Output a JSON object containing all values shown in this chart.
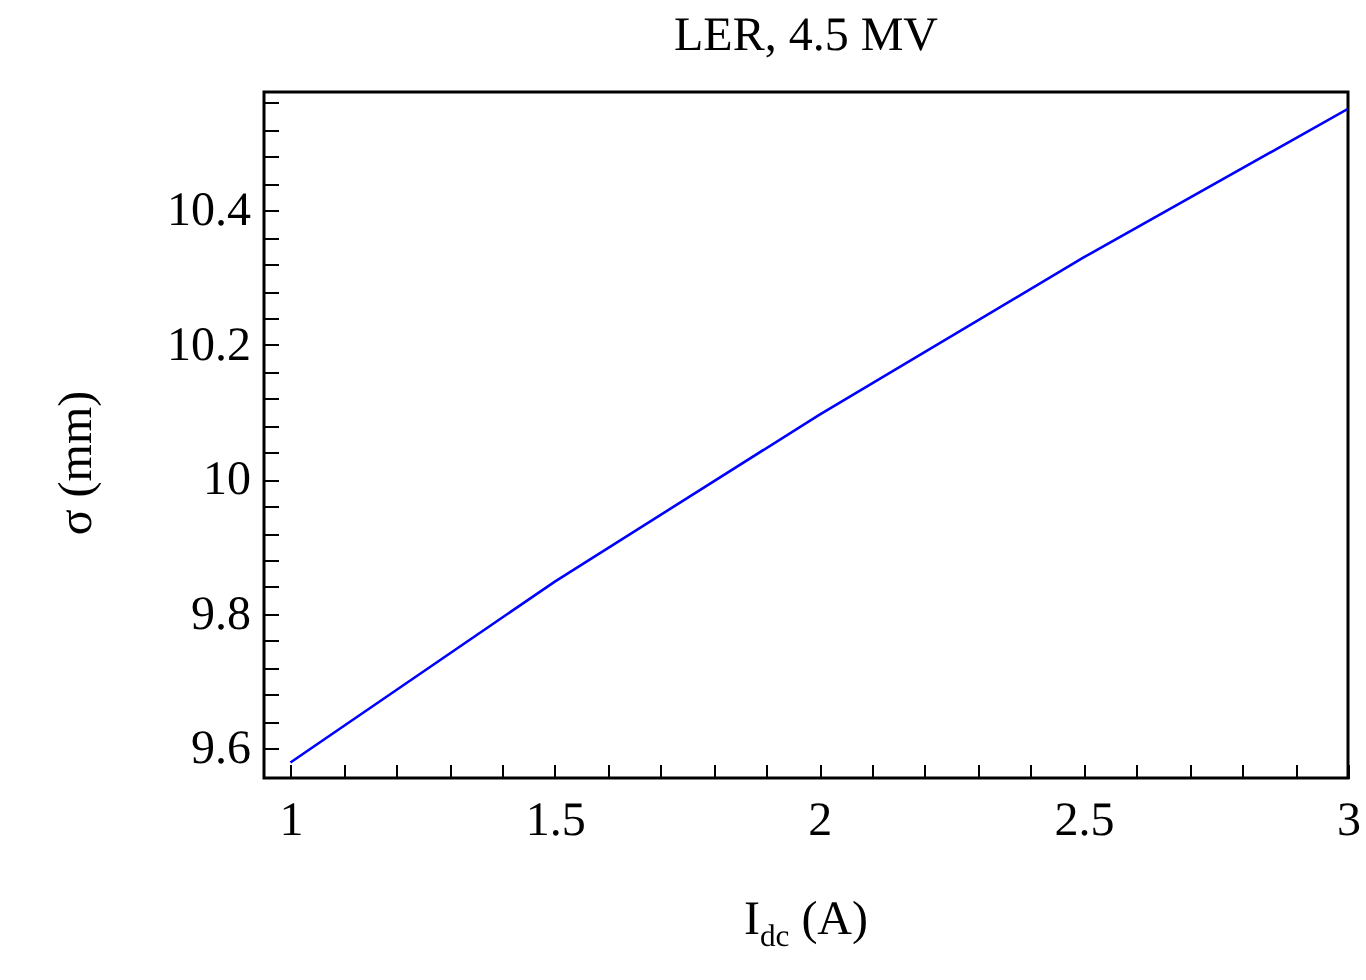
{
  "chart_data": {
    "type": "line",
    "title": "LER, 4.5 MV",
    "xlabel": "I$_{dc}$ (A)",
    "ylabel": "σ (mm)",
    "x": [
      1,
      1.5,
      2,
      2.5,
      3
    ],
    "series": [
      {
        "color": "#0000ff",
        "values": [
          9.579,
          9.848,
          10.096,
          10.33,
          10.551
        ]
      }
    ],
    "xlim": [
      0.95,
      3.0
    ],
    "xticks": [
      1,
      {
        "value": 1.1,
        "label": null
      },
      {
        "value": 1.2,
        "label": null
      },
      {
        "value": 1.3,
        "label": null
      },
      {
        "value": 1.4,
        "label": null
      },
      1.5,
      {
        "value": 1.6,
        "label": null
      },
      {
        "value": 1.7,
        "label": null
      },
      {
        "value": 1.8,
        "label": null
      },
      {
        "value": 1.9,
        "label": null
      },
      2,
      {
        "value": 2.1,
        "label": null
      },
      {
        "value": 2.2,
        "label": null
      },
      {
        "value": 2.3,
        "label": null
      },
      {
        "value": 2.4,
        "label": null
      },
      2.5,
      {
        "value": 2.6,
        "label": null
      },
      {
        "value": 2.7,
        "label": null
      },
      {
        "value": 2.8,
        "label": null
      },
      {
        "value": 2.9,
        "label": null
      },
      3
    ],
    "ylim": [
      9.556,
      10.576
    ],
    "yticks": [
      9.6,
      {
        "value": 9.64,
        "label": null
      },
      {
        "value": 9.68,
        "label": null
      },
      {
        "value": 9.72,
        "label": null
      },
      {
        "value": 9.76,
        "label": null
      },
      9.8,
      {
        "value": 9.84,
        "label": null
      },
      {
        "value": 9.88,
        "label": null
      },
      {
        "value": 9.92,
        "label": null
      },
      {
        "value": 9.96,
        "label": null
      },
      10,
      {
        "value": 10.04,
        "label": null
      },
      {
        "value": 10.08,
        "label": null
      },
      {
        "value": 10.12,
        "label": null
      },
      {
        "value": 10.16,
        "label": null
      },
      10.2,
      {
        "value": 10.24,
        "label": null
      },
      {
        "value": 10.28,
        "label": null
      },
      {
        "value": 10.32,
        "label": null
      },
      {
        "value": 10.36,
        "label": null
      },
      10.4,
      {
        "value": 10.44,
        "label": null
      },
      {
        "value": 10.48,
        "label": null
      },
      {
        "value": 10.52,
        "label": null
      },
      {
        "value": 10.56,
        "label": null
      }
    ],
    "line_style": "solid",
    "marker": "none"
  }
}
